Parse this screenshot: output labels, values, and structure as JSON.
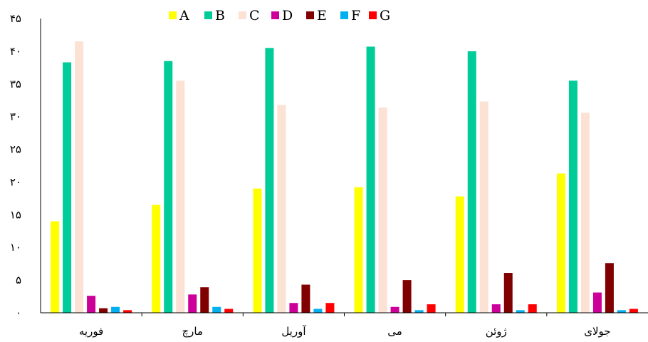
{
  "chart_data": {
    "type": "bar",
    "categories": [
      "فوریه",
      "مارچ",
      "آوریل",
      "می",
      "ژوئن",
      "جولای"
    ],
    "series": [
      {
        "name": "A",
        "color": "#ffff00",
        "values": [
          14,
          16.5,
          19,
          19.2,
          17.8,
          21.3
        ]
      },
      {
        "name": "B",
        "color": "#00cc99",
        "values": [
          38.3,
          38.5,
          40.5,
          40.7,
          40,
          35.5
        ]
      },
      {
        "name": "C",
        "color": "#fbe2d5",
        "values": [
          41.5,
          35.5,
          31.8,
          31.4,
          32.3,
          30.6
        ]
      },
      {
        "name": "D",
        "color": "#cc0099",
        "values": [
          2.6,
          2.8,
          1.5,
          0.9,
          1.3,
          3.1
        ]
      },
      {
        "name": "E",
        "color": "#800000",
        "values": [
          0.7,
          3.9,
          4.3,
          5,
          6.1,
          7.6
        ]
      },
      {
        "name": "F",
        "color": "#00b0f0",
        "values": [
          0.9,
          0.9,
          0.6,
          0.4,
          0.4,
          0.4
        ]
      },
      {
        "name": "G",
        "color": "#ff0000",
        "values": [
          0.4,
          0.6,
          1.5,
          1.3,
          1.3,
          0.6
        ]
      }
    ],
    "yticks": [
      "۰",
      "۵",
      "۱۰",
      "۱۵",
      "۲۰",
      "۲۵",
      "۳۰",
      "۳۵",
      "۴۰",
      "۴۵"
    ],
    "ylim": [
      0,
      45
    ],
    "grid": false,
    "legend_position": "top",
    "title": "",
    "xlabel": "",
    "ylabel": ""
  }
}
